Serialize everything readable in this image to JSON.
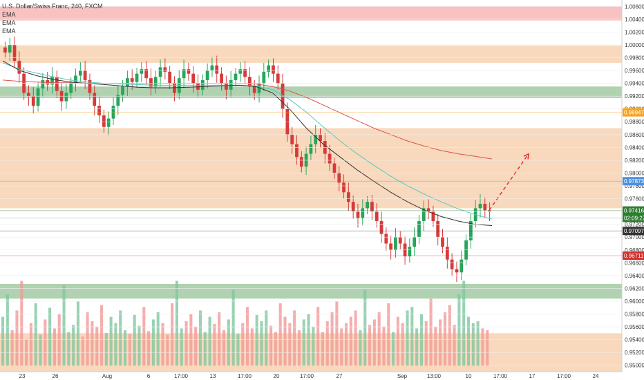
{
  "chart_data": {
    "type": "candlestick",
    "title": "U.S. Dollar/Swiss Franc, 240, FXCM",
    "indicators": [
      "EMA",
      "EMA",
      "EMA"
    ],
    "y_range": [
      0.949,
      1.007
    ],
    "y_ticks": [
      "0.95000",
      "0.95200",
      "0.95400",
      "0.95600",
      "0.95800",
      "0.96000",
      "0.96200",
      "0.96400",
      "0.96600",
      "0.96800",
      "0.97000",
      "0.97200",
      "0.97400",
      "0.97600",
      "0.97800",
      "0.98000",
      "0.98200",
      "0.98400",
      "0.98600",
      "0.98800",
      "0.99000",
      "0.99200",
      "0.99400",
      "0.99600",
      "0.99800",
      "1.00000",
      "1.00200",
      "1.00400",
      "1.00600"
    ],
    "x_ticks": [
      "23",
      "26",
      "Aug",
      "6",
      "17:00",
      "13",
      "17:00",
      "20",
      "17:00",
      "27",
      "Sep",
      "13:00",
      "10",
      "17:00",
      "17",
      "17:00",
      "24"
    ],
    "price_badges": [
      {
        "label": "0.98947",
        "value": 0.98947,
        "color": "#f7a21b"
      },
      {
        "label": "0.97873",
        "value": 0.97873,
        "color": "#4a90e2"
      },
      {
        "label": "0.97416",
        "value": 0.97416,
        "color": "#2e7d32"
      },
      {
        "label": "02:09:27",
        "value": 0.973,
        "color": "#2e7d32"
      },
      {
        "label": "0.97097",
        "value": 0.97097,
        "color": "#333333"
      },
      {
        "label": "0.96711",
        "value": 0.96711,
        "color": "#d32f2f"
      }
    ],
    "zones": [
      {
        "from": 1.0038,
        "to": 1.006,
        "color": "#f7a8a8"
      },
      {
        "from": 0.9972,
        "to": 0.9999,
        "color": "#f5c9a1"
      },
      {
        "from": 0.9917,
        "to": 0.9935,
        "color": "#8fbf8f"
      },
      {
        "from": 0.9745,
        "to": 0.987,
        "color": "#f5c9a1"
      },
      {
        "from": 0.9604,
        "to": 0.9627,
        "color": "#8fbf8f"
      },
      {
        "from": 0.949,
        "to": 0.955,
        "color": "#f5c9a1"
      }
    ],
    "close_series": [
      0.9988,
      1.0,
      0.9975,
      0.9955,
      0.9925,
      0.992,
      0.9905,
      0.9932,
      0.9945,
      0.9938,
      0.995,
      0.9928,
      0.9912,
      0.9925,
      0.994,
      0.9952,
      0.996,
      0.9945,
      0.9925,
      0.9905,
      0.989,
      0.9872,
      0.9885,
      0.9905,
      0.9922,
      0.9935,
      0.9948,
      0.9942,
      0.9955,
      0.9962,
      0.9948,
      0.9935,
      0.995,
      0.9965,
      0.9958,
      0.994,
      0.9925,
      0.9948,
      0.9962,
      0.9955,
      0.994,
      0.993,
      0.9945,
      0.996,
      0.9968,
      0.9955,
      0.994,
      0.993,
      0.9945,
      0.9955,
      0.9962,
      0.995,
      0.9935,
      0.9925,
      0.994,
      0.9958,
      0.9968,
      0.9955,
      0.994,
      0.99,
      0.986,
      0.9845,
      0.9825,
      0.981,
      0.983,
      0.9845,
      0.986,
      0.985,
      0.983,
      0.9815,
      0.98,
      0.9785,
      0.977,
      0.9755,
      0.974,
      0.973,
      0.9745,
      0.9755,
      0.974,
      0.9725,
      0.9705,
      0.969,
      0.968,
      0.97,
      0.969,
      0.967,
      0.9685,
      0.97,
      0.9725,
      0.9745,
      0.974,
      0.9725,
      0.97,
      0.9685,
      0.9665,
      0.965,
      0.9645,
      0.9665,
      0.9695,
      0.9725,
      0.9745,
      0.9752,
      0.9742,
      0.974
    ],
    "ema_fast": [
      0.9975,
      0.996,
      0.9952,
      0.9946,
      0.9942,
      0.994,
      0.9938,
      0.9936,
      0.9934,
      0.9933,
      0.9933,
      0.9934,
      0.9935,
      0.9936,
      0.9937,
      0.9935,
      0.9925,
      0.99,
      0.987,
      0.9845,
      0.9825,
      0.9805,
      0.9787,
      0.977,
      0.9755,
      0.9742,
      0.9732,
      0.9725,
      0.972,
      0.9718
    ],
    "ema_mid": [
      0.9972,
      0.9962,
      0.9956,
      0.995,
      0.9945,
      0.9942,
      0.994,
      0.9939,
      0.9938,
      0.9937,
      0.9937,
      0.9937,
      0.9937,
      0.9937,
      0.9937,
      0.9936,
      0.993,
      0.9915,
      0.9895,
      0.9872,
      0.985,
      0.983,
      0.9812,
      0.9795,
      0.978,
      0.9767,
      0.9755,
      0.9744,
      0.9735,
      0.9728
    ],
    "ema_slow": [
      0.9945,
      0.9943,
      0.9942,
      0.9941,
      0.9941,
      0.994,
      0.994,
      0.994,
      0.994,
      0.994,
      0.994,
      0.994,
      0.994,
      0.994,
      0.994,
      0.9939,
      0.9935,
      0.9928,
      0.9918,
      0.9906,
      0.9894,
      0.9882,
      0.987,
      0.986,
      0.985,
      0.9842,
      0.9835,
      0.983,
      0.9826,
      0.9822
    ],
    "volume": [
      0.55,
      0.8,
      0.4,
      0.62,
      0.95,
      0.3,
      0.48,
      0.7,
      0.35,
      0.52,
      0.65,
      0.42,
      0.58,
      0.9,
      0.38,
      0.46,
      0.72,
      0.33,
      0.6,
      0.5,
      0.44,
      0.68,
      0.37,
      0.55,
      0.48,
      0.62,
      0.4,
      0.36,
      0.57,
      0.45,
      0.66,
      0.39,
      0.52,
      0.6,
      0.48,
      0.35,
      0.7,
      0.95,
      0.42,
      0.5,
      0.58,
      0.44,
      0.62,
      0.38,
      0.55,
      0.47,
      0.6,
      0.4,
      0.52,
      0.85,
      0.36,
      0.48,
      0.66,
      0.42,
      0.57,
      0.5,
      0.62,
      0.45,
      0.38,
      0.7,
      0.55,
      0.48,
      0.62,
      0.4,
      0.52,
      0.58,
      0.44,
      0.66,
      0.38,
      0.5,
      0.6,
      0.72,
      0.42,
      0.48,
      0.55,
      0.62,
      0.4,
      0.85,
      0.46,
      0.52,
      0.6,
      0.44,
      0.7,
      0.38,
      0.55,
      0.48,
      0.62,
      0.66,
      0.42,
      0.58,
      0.5,
      0.75,
      0.44,
      0.52,
      0.6,
      0.68,
      0.46,
      0.8,
      0.95,
      0.55,
      0.48,
      0.5,
      0.42,
      0.4
    ],
    "projection": {
      "from": 0.9742,
      "to": 0.983
    }
  }
}
